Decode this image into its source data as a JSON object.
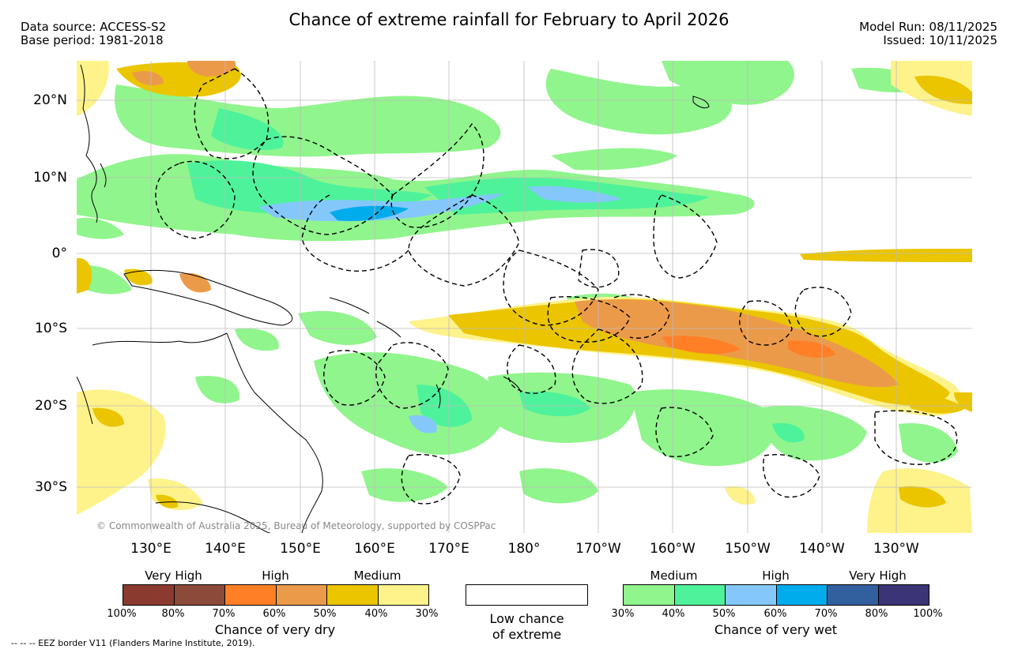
{
  "title": "Chance of extreme rainfall for February to April 2026",
  "header_left": {
    "line1": "Data source: ACCESS-S2",
    "line2": "Base period: 1981-2018"
  },
  "header_right": {
    "line1": "Model Run: 08/11/2025",
    "line2": "Issued: 10/11/2025"
  },
  "latitudes": [
    "20°N",
    "10°N",
    "0°",
    "10°S",
    "20°S",
    "30°S"
  ],
  "longitudes": [
    "130°E",
    "140°E",
    "150°E",
    "160°E",
    "170°E",
    "180°",
    "170°W",
    "160°W",
    "150°W",
    "140°W",
    "130°W"
  ],
  "copyright": "© Commonwealth of Australia 2025, Bureau of Meteorology, supported by COSPPac",
  "legend_dry": {
    "labels": [
      "Very High",
      "High",
      "Medium"
    ],
    "ticks": [
      "100%",
      "80%",
      "70%",
      "60%",
      "50%",
      "40%",
      "30%"
    ],
    "colors": [
      "#8b3a2f",
      "#8b4a3a",
      "#ff7f27",
      "#eb9a4a",
      "#eac500",
      "#fef28b"
    ],
    "caption": "Chance of very dry"
  },
  "legend_low": {
    "line1": "Low chance",
    "line2": "of extreme"
  },
  "legend_wet": {
    "labels": [
      "Medium",
      "High",
      "Very High"
    ],
    "ticks": [
      "30%",
      "40%",
      "50%",
      "60%",
      "70%",
      "80%",
      "100%"
    ],
    "colors": [
      "#90f58c",
      "#4ef29b",
      "#84c8fb",
      "#00acec",
      "#325f9e",
      "#3b3477"
    ],
    "caption": "Chance of very wet"
  },
  "footer": "-- -- -- EEZ border V11 (Flanders Marine Institute, 2019)."
}
